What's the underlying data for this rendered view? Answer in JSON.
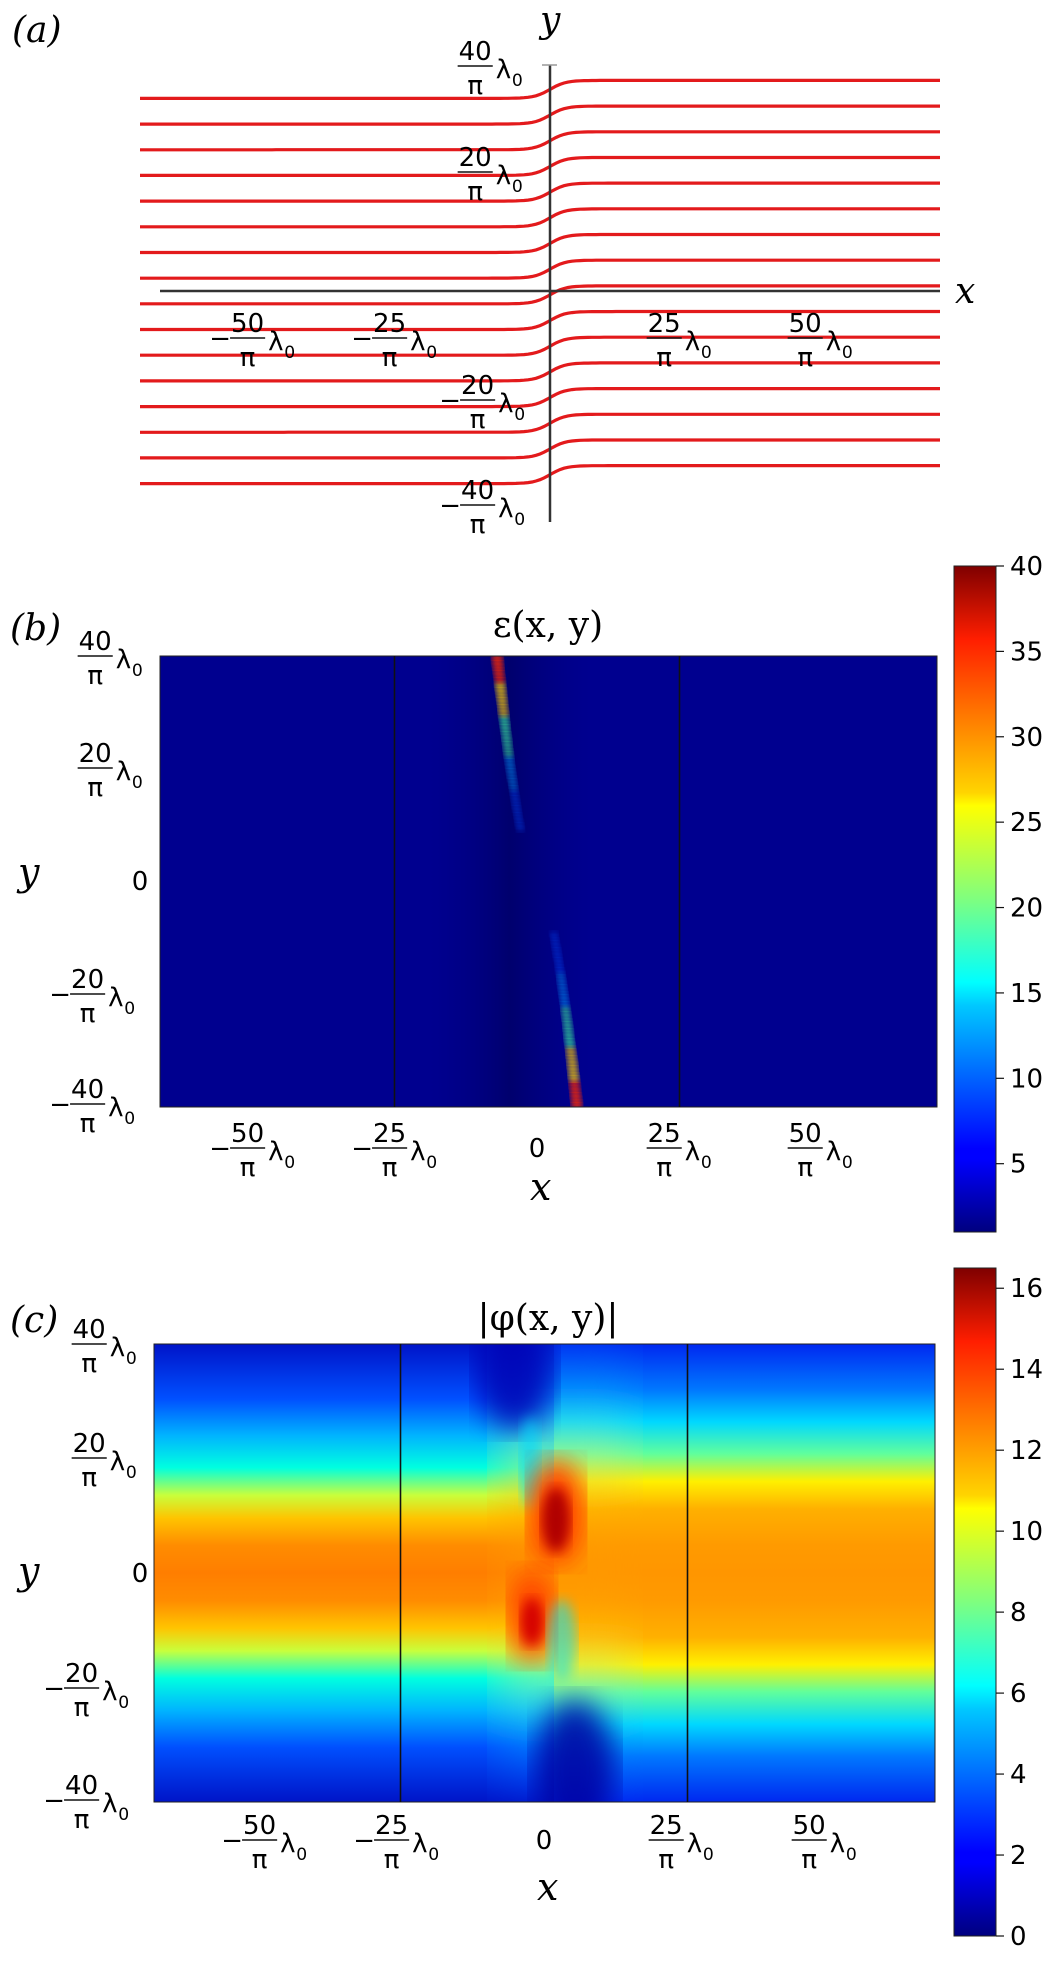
{
  "figure": {
    "panels": [
      {
        "label": "(a)",
        "type": "line",
        "xlabel": "x",
        "ylabel": "y",
        "x_ticks": [
          {
            "sign": "−",
            "num": "50",
            "den": "π",
            "unit": "λ",
            "sub": "0",
            "value_units": -50
          },
          {
            "sign": "−",
            "num": "25",
            "den": "π",
            "unit": "λ",
            "sub": "0",
            "value_units": -25
          },
          {
            "sign": "",
            "num": "25",
            "den": "π",
            "unit": "λ",
            "sub": "0",
            "value_units": 25
          },
          {
            "sign": "",
            "num": "50",
            "den": "π",
            "unit": "λ",
            "sub": "0",
            "value_units": 50
          }
        ],
        "y_ticks": [
          {
            "sign": "",
            "num": "40",
            "den": "π",
            "unit": "λ",
            "sub": "0",
            "value_units": 40
          },
          {
            "sign": "",
            "num": "20",
            "den": "π",
            "unit": "λ",
            "sub": "0",
            "value_units": 20
          },
          {
            "sign": "−",
            "num": "20",
            "den": "π",
            "unit": "λ",
            "sub": "0",
            "value_units": -20
          },
          {
            "sign": "−",
            "num": "40",
            "den": "π",
            "unit": "λ",
            "sub": "0",
            "value_units": -40
          }
        ],
        "line_color": "#e31a1c"
      },
      {
        "label": "(b)",
        "type": "heatmap",
        "title": "ε(x, y)",
        "xlabel": "x",
        "ylabel": "y",
        "colorbar_ticks": [
          "40",
          "35",
          "30",
          "25",
          "20",
          "15",
          "10",
          "5"
        ],
        "colorbar_range": [
          1,
          40
        ],
        "x_ticks": [
          {
            "sign": "−",
            "num": "50",
            "den": "π",
            "unit": "λ",
            "sub": "0"
          },
          {
            "sign": "−",
            "num": "25",
            "den": "π",
            "unit": "λ",
            "sub": "0"
          },
          {
            "plain": "0"
          },
          {
            "sign": "",
            "num": "25",
            "den": "π",
            "unit": "λ",
            "sub": "0"
          },
          {
            "sign": "",
            "num": "50",
            "den": "π",
            "unit": "λ",
            "sub": "0"
          }
        ],
        "y_ticks": [
          {
            "sign": "",
            "num": "40",
            "den": "π",
            "unit": "λ",
            "sub": "0"
          },
          {
            "sign": "",
            "num": "20",
            "den": "π",
            "unit": "λ",
            "sub": "0"
          },
          {
            "plain": "0"
          },
          {
            "sign": "−",
            "num": "20",
            "den": "π",
            "unit": "λ",
            "sub": "0"
          },
          {
            "sign": "−",
            "num": "40",
            "den": "π",
            "unit": "λ",
            "sub": "0"
          }
        ]
      },
      {
        "label": "(c)",
        "type": "heatmap",
        "title": "|φ(x, y)|",
        "xlabel": "x",
        "ylabel": "y",
        "colorbar_ticks": [
          "16",
          "14",
          "12",
          "10",
          "8",
          "6",
          "4",
          "2",
          "0"
        ],
        "colorbar_range": [
          0,
          16.5
        ],
        "x_ticks": [
          {
            "sign": "−",
            "num": "50",
            "den": "π",
            "unit": "λ",
            "sub": "0"
          },
          {
            "sign": "−",
            "num": "25",
            "den": "π",
            "unit": "λ",
            "sub": "0"
          },
          {
            "plain": "0"
          },
          {
            "sign": "",
            "num": "25",
            "den": "π",
            "unit": "λ",
            "sub": "0"
          },
          {
            "sign": "",
            "num": "50",
            "den": "π",
            "unit": "λ",
            "sub": "0"
          }
        ],
        "y_ticks": [
          {
            "sign": "",
            "num": "40",
            "den": "π",
            "unit": "λ",
            "sub": "0"
          },
          {
            "sign": "",
            "num": "20",
            "den": "π",
            "unit": "λ",
            "sub": "0"
          },
          {
            "plain": "0"
          },
          {
            "sign": "−",
            "num": "20",
            "den": "π",
            "unit": "λ",
            "sub": "0"
          },
          {
            "sign": "−",
            "num": "40",
            "den": "π",
            "unit": "λ",
            "sub": "0"
          }
        ]
      }
    ]
  },
  "chart_data": [
    {
      "type": "line",
      "xlabel": "x",
      "ylabel": "y",
      "x_unit": "λ0/π",
      "y_unit": "λ0/π",
      "xlim": [
        -65,
        65
      ],
      "ylim": [
        -44,
        44
      ],
      "description_free": true,
      "series_offsets_far_left": [
        -37.5,
        -32.5,
        -27.5,
        -22.5,
        -17.5,
        -12.5,
        -7.5,
        -2.5,
        2.5,
        7.5,
        12.5,
        17.5,
        22.5,
        27.5,
        32.5,
        37.5
      ],
      "shift_right": 3.5
    },
    {
      "type": "heatmap",
      "title": "ε(x, y)",
      "xlabel": "x",
      "ylabel": "y",
      "xlim": [
        -68,
        68
      ],
      "ylim": [
        -40,
        40
      ],
      "colorbar_range": [
        1,
        40
      ],
      "vertical_lines_x": [
        -25,
        25
      ],
      "feature_points": [
        {
          "x": -7,
          "y": 40,
          "value": 40
        },
        {
          "x": -5,
          "y": 20,
          "value": 10
        },
        {
          "x": 4,
          "y": -12,
          "value": 10
        },
        {
          "x": 7,
          "y": -40,
          "value": 40
        }
      ]
    },
    {
      "type": "heatmap",
      "title": "|φ(x, y)|",
      "xlabel": "x",
      "ylabel": "y",
      "xlim": [
        -68,
        68
      ],
      "ylim": [
        -40,
        40
      ],
      "colorbar_range": [
        0,
        16.5
      ],
      "vertical_lines_x": [
        -25,
        25
      ],
      "far_field_peak_left": 12,
      "far_field_peak_right": 11,
      "hotspots": [
        {
          "x": 0,
          "y": 11,
          "value": 16.5
        },
        {
          "x": -3,
          "y": -9,
          "value": 15
        }
      ]
    }
  ]
}
